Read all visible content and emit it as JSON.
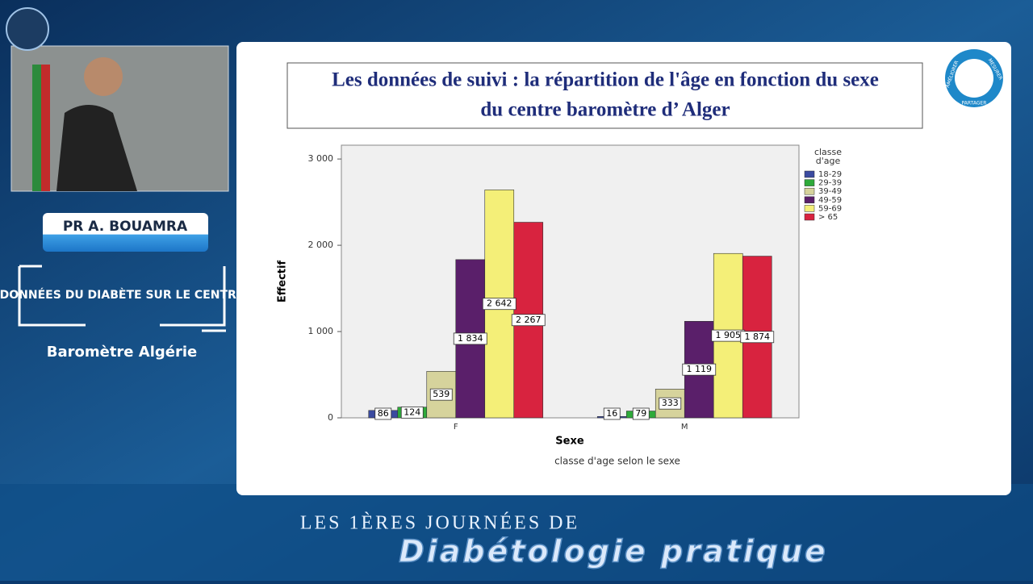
{
  "speaker": {
    "name": "PR A. BOUAMRA",
    "topic": "DONNÉES DU DIABÈTE SUR LE CENTRE",
    "subtitle": "Baromètre Algérie"
  },
  "badge": [
    "AMÉLIORER",
    "MESURER",
    "PARTAGER"
  ],
  "banner": {
    "line1": "LES 1ÈRES JOURNÉES DE",
    "line2": "Diabétologie pratique"
  },
  "chart_data": {
    "type": "bar",
    "title": [
      "Les données de suivi : la répartition de l'âge en fonction du sexe",
      "du centre baromètre d’ Alger"
    ],
    "y_label": "Effectif",
    "x_label": "Sexe",
    "caption": "classe d'age selon le sexe",
    "legend_title": [
      "classe",
      "d'age"
    ],
    "categories": [
      "F",
      "M"
    ],
    "series": [
      {
        "name": "18-29",
        "color": "#3b4ba0",
        "values": [
          86,
          16
        ]
      },
      {
        "name": "29-39",
        "color": "#2eaa3a",
        "values": [
          124,
          79
        ]
      },
      {
        "name": "39-49",
        "color": "#d6d39c",
        "values": [
          539,
          333
        ]
      },
      {
        "name": "49-59",
        "color": "#5a1f6a",
        "values": [
          1834,
          1119
        ],
        "value_labels": [
          "1 834",
          "1 119"
        ]
      },
      {
        "name": "59-69",
        "color": "#f4ef78",
        "values": [
          2642,
          1905
        ],
        "value_labels": [
          "2 642",
          "1 905"
        ]
      },
      {
        "name": "> 65",
        "color": "#d8233f",
        "values": [
          2267,
          1874
        ],
        "value_labels": [
          "2 267",
          "1 874"
        ]
      }
    ],
    "ylim": [
      0,
      3160
    ],
    "yticks": [
      0,
      {
        "value": 1000,
        "label": "1 000"
      },
      {
        "value": 2000,
        "label": "2 000"
      },
      {
        "value": 3000,
        "label": "3 000"
      }
    ]
  }
}
